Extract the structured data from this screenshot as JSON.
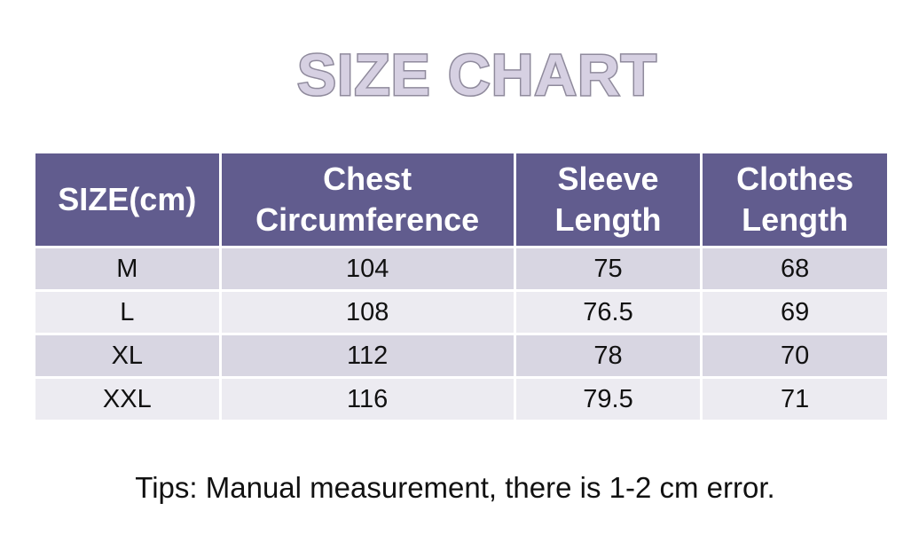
{
  "title": "SIZE CHART",
  "table": {
    "headers": [
      {
        "lines": [
          "SIZE(cm)"
        ]
      },
      {
        "lines": [
          "Chest",
          "Circumference"
        ]
      },
      {
        "lines": [
          "Sleeve",
          "Length"
        ]
      },
      {
        "lines": [
          "Clothes",
          "Length"
        ]
      }
    ],
    "rows": [
      [
        "M",
        "104",
        "75",
        "68"
      ],
      [
        "L",
        "108",
        "76.5",
        "69"
      ],
      [
        "XL",
        "112",
        "78",
        "70"
      ],
      [
        "XXL",
        "116",
        "79.5",
        "71"
      ]
    ]
  },
  "tips": "Tips: Manual measurement, there is 1-2 cm error.",
  "colors": {
    "header_bg": "#615c8e",
    "row_odd_bg": "#d8d6e2",
    "row_even_bg": "#ecebf1",
    "title_fill": "#d6d0e2",
    "title_stroke": "#8f8a9c"
  }
}
